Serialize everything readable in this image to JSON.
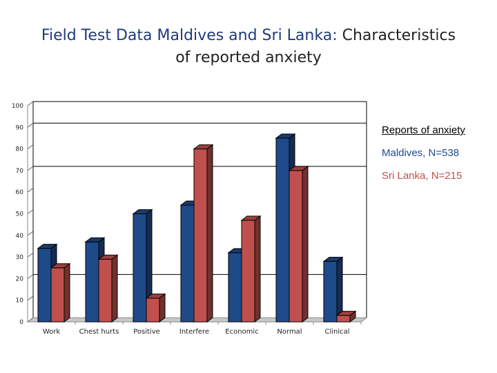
{
  "title": {
    "part1": "Field Test Data Maldives and Sri Lanka:",
    "part2": "Characteristics",
    "line2": "of reported anxiety"
  },
  "legend": {
    "title": "Reports of anxiety"
  },
  "colors": {
    "maldives": "#1f4a8a",
    "srilanka": "#c0504d",
    "title_accent": "#1f3b7a"
  },
  "chart_data": {
    "type": "bar",
    "title": "Field Test Data Maldives and Sri Lanka: Characteristics of reported anxiety",
    "categories": [
      "Work",
      "Chest hurts",
      "Positive",
      "Interfere",
      "Economic",
      "Normal",
      "Clinical"
    ],
    "series": [
      {
        "name": "Maldives, N=538",
        "values": [
          34,
          37,
          50,
          54,
          32,
          85,
          28
        ]
      },
      {
        "name": "Sri Lanka, N=215",
        "values": [
          25,
          29,
          11,
          80,
          47,
          70,
          3
        ]
      }
    ],
    "yticks": [
      0,
      10,
      20,
      30,
      40,
      50,
      60,
      70,
      80,
      90,
      100
    ],
    "ylim": [
      0,
      100
    ],
    "gridlines": [
      90,
      70,
      20
    ],
    "xlabel": "",
    "ylabel": "",
    "legend_position": "right"
  }
}
